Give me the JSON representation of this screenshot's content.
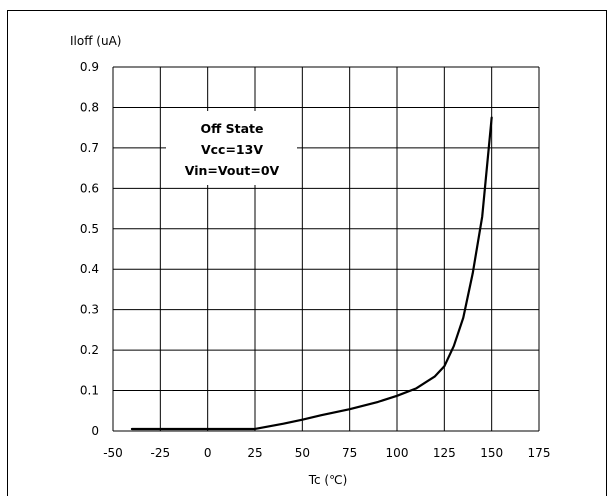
{
  "chart_data": {
    "type": "line",
    "title": "",
    "xlabel": "Tc (℃)",
    "ylabel": "Iloff (uA)",
    "xlim": [
      -50,
      175
    ],
    "ylim": [
      0,
      0.9
    ],
    "xticks": [
      -50,
      -25,
      0,
      25,
      50,
      75,
      100,
      125,
      150,
      175
    ],
    "yticks": [
      0,
      0.1,
      0.2,
      0.3,
      0.4,
      0.5,
      0.6,
      0.7,
      0.8,
      0.9
    ],
    "xtick_labels": [
      "-50",
      "-25",
      "0",
      "25",
      "50",
      "75",
      "100",
      "125",
      "150",
      "175"
    ],
    "ytick_labels": [
      "0",
      "0.1",
      "0.2",
      "0.3",
      "0.4",
      "0.5",
      "0.6",
      "0.7",
      "0.8",
      "0.9"
    ],
    "grid": true,
    "annotation": [
      "Off State",
      "Vcc=13V",
      "Vin=Vout=0V"
    ],
    "series": [
      {
        "color": "#000000",
        "x": [
          -40,
          0,
          25,
          40,
          50,
          60,
          75,
          90,
          100,
          110,
          120,
          125,
          130,
          135,
          140,
          145,
          150
        ],
        "y": [
          0.005,
          0.005,
          0.005,
          0.018,
          0.028,
          0.039,
          0.054,
          0.072,
          0.087,
          0.105,
          0.135,
          0.16,
          0.21,
          0.28,
          0.39,
          0.53,
          0.775
        ]
      }
    ]
  }
}
